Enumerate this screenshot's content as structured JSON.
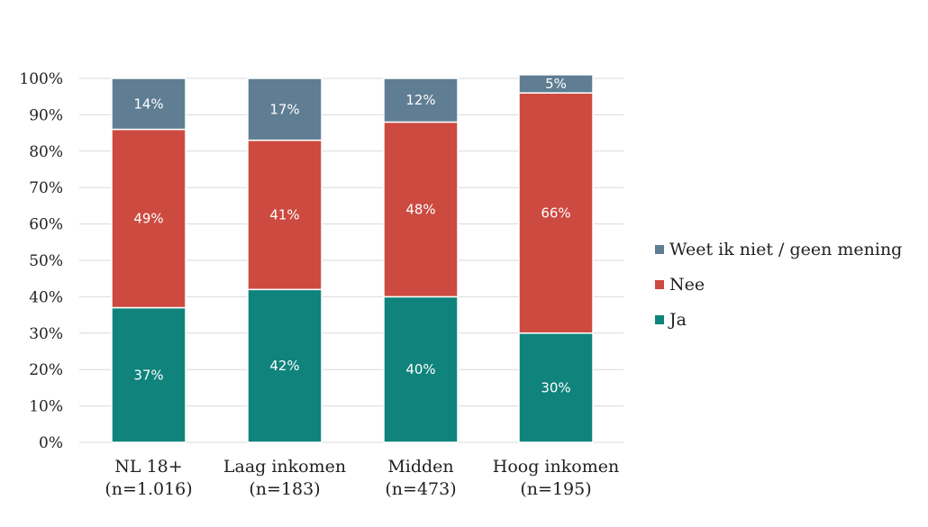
{
  "chart_data": {
    "type": "bar",
    "stacked": true,
    "title": "",
    "xlabel": "",
    "ylabel": "",
    "ylim": [
      0,
      100
    ],
    "y_ticks": [
      "0%",
      "10%",
      "20%",
      "30%",
      "40%",
      "50%",
      "60%",
      "70%",
      "80%",
      "90%",
      "100%"
    ],
    "grid": true,
    "legend_position": "right",
    "categories": [
      [
        "NL 18+",
        "(n=1.016)"
      ],
      [
        "Laag inkomen",
        "(n=183)"
      ],
      [
        "Midden",
        "(n=473)"
      ],
      [
        "Hoog inkomen",
        "(n=195)"
      ]
    ],
    "series": [
      {
        "name": "Ja",
        "color": "#0f837c",
        "values": [
          37,
          42,
          40,
          30
        ],
        "labels": [
          "37%",
          "42%",
          "40%",
          "30%"
        ]
      },
      {
        "name": "Nee",
        "color": "#cc4a40",
        "values": [
          49,
          41,
          48,
          66
        ],
        "labels": [
          "49%",
          "41%",
          "48%",
          "66%"
        ]
      },
      {
        "name": "Weet ik niet / geen mening",
        "color": "#5f7d93",
        "values": [
          14,
          17,
          12,
          5
        ],
        "labels": [
          "14%",
          "17%",
          "12%",
          "5%"
        ]
      }
    ],
    "legend_order": [
      "Weet ik niet / geen mening",
      "Nee",
      "Ja"
    ]
  }
}
